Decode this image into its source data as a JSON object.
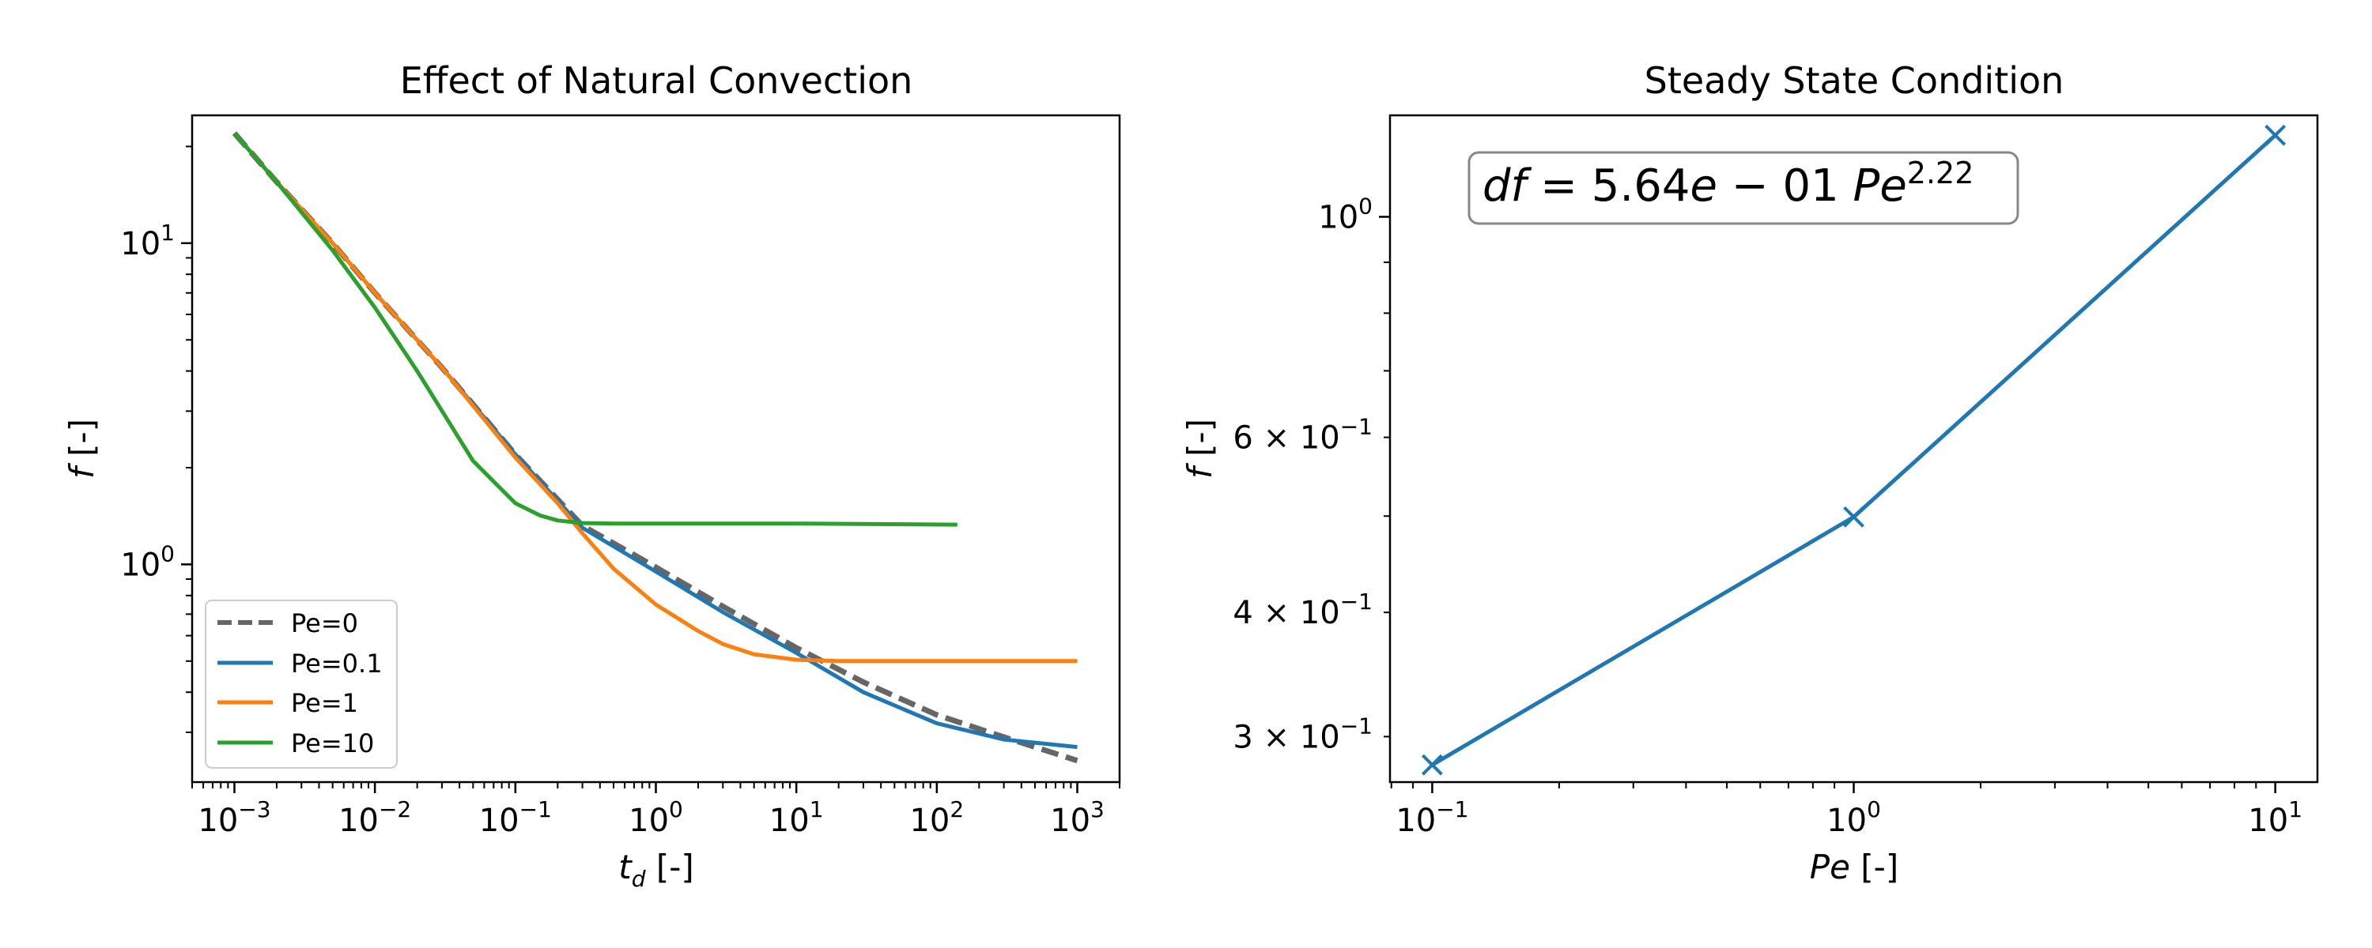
{
  "chart_data": [
    {
      "type": "line",
      "title": "Effect of Natural Convection",
      "xlabel": "t_d [-]",
      "xlabel_parts": {
        "sym": "t",
        "sub": "d",
        "unit": "[-]"
      },
      "ylabel": "f [-]",
      "ylabel_parts": {
        "sym": "f",
        "unit": "[-]"
      },
      "xscale": "log",
      "yscale": "log",
      "xlim": [
        0.0005,
        2000
      ],
      "ylim": [
        0.21,
        25
      ],
      "xticks": [
        {
          "base": "10",
          "exp": "−3",
          "value": 0.001
        },
        {
          "base": "10",
          "exp": "−2",
          "value": 0.01
        },
        {
          "base": "10",
          "exp": "−1",
          "value": 0.1
        },
        {
          "base": "10",
          "exp": "0",
          "value": 1
        },
        {
          "base": "10",
          "exp": "1",
          "value": 10
        },
        {
          "base": "10",
          "exp": "2",
          "value": 100
        },
        {
          "base": "10",
          "exp": "3",
          "value": 1000
        }
      ],
      "yticks": [
        {
          "base": "10",
          "exp": "0",
          "value": 1
        },
        {
          "base": "10",
          "exp": "1",
          "value": 10
        }
      ],
      "legend_position": "lower-left",
      "grid": false,
      "series": [
        {
          "name": "Pe=0",
          "color": "#666666",
          "dash": true,
          "x": [
            0.001,
            0.002,
            0.005,
            0.01,
            0.03,
            0.1,
            0.3,
            1,
            3,
            10,
            30,
            100,
            300,
            1000
          ],
          "y": [
            22,
            15.5,
            10,
            7,
            4.1,
            2.2,
            1.32,
            0.98,
            0.74,
            0.55,
            0.43,
            0.34,
            0.29,
            0.245
          ]
        },
        {
          "name": "Pe=0.1",
          "color": "#1f77b4",
          "dash": false,
          "x": [
            0.001,
            0.002,
            0.005,
            0.01,
            0.03,
            0.1,
            0.3,
            1,
            3,
            10,
            30,
            100,
            300,
            1000
          ],
          "y": [
            22,
            15.5,
            10,
            7,
            4.1,
            2.2,
            1.3,
            0.95,
            0.71,
            0.53,
            0.4,
            0.32,
            0.285,
            0.27
          ]
        },
        {
          "name": "Pe=1",
          "color": "#ff7f0e",
          "dash": false,
          "x": [
            0.001,
            0.002,
            0.005,
            0.01,
            0.03,
            0.1,
            0.2,
            0.3,
            0.5,
            1,
            2,
            3,
            5,
            10,
            20,
            100,
            1000
          ],
          "y": [
            22,
            15.5,
            10,
            7,
            4.1,
            2.15,
            1.55,
            1.25,
            0.97,
            0.75,
            0.62,
            0.565,
            0.525,
            0.505,
            0.5,
            0.5,
            0.5
          ]
        },
        {
          "name": "Pe=10",
          "color": "#2ca02c",
          "dash": false,
          "x": [
            0.001,
            0.002,
            0.005,
            0.01,
            0.02,
            0.05,
            0.1,
            0.15,
            0.2,
            0.3,
            0.5,
            1,
            10,
            140
          ],
          "y": [
            22,
            15.5,
            9.5,
            6.3,
            4.0,
            2.1,
            1.55,
            1.42,
            1.37,
            1.345,
            1.34,
            1.34,
            1.34,
            1.33
          ]
        }
      ]
    },
    {
      "type": "line",
      "title": "Steady State Condition",
      "xlabel": "Pe [-]",
      "xlabel_parts": {
        "sym": "Pe",
        "unit": "[-]"
      },
      "ylabel": "f [-]",
      "ylabel_parts": {
        "sym": "f",
        "unit": "[-]"
      },
      "xscale": "log",
      "yscale": "log",
      "xlim": [
        0.0794,
        12.59
      ],
      "ylim": [
        0.27,
        1.265
      ],
      "xticks": [
        {
          "base": "10",
          "exp": "−1",
          "value": 0.1
        },
        {
          "base": "10",
          "exp": "0",
          "value": 1
        },
        {
          "base": "10",
          "exp": "1",
          "value": 10
        }
      ],
      "yticks": [
        {
          "mant": "3 × ",
          "base": "10",
          "exp": "−1",
          "value": 0.3
        },
        {
          "mant": "4 × ",
          "base": "10",
          "exp": "−1",
          "value": 0.4
        },
        {
          "mant": "6 × ",
          "base": "10",
          "exp": "−1",
          "value": 0.6
        },
        {
          "mant": "",
          "base": "10",
          "exp": "0",
          "value": 1
        }
      ],
      "annotation": {
        "lhs": "df",
        "eq": " = ",
        "coef": "5.64",
        "e": "e",
        "minus": " − ",
        "e_exp": "01",
        "var": "Pe",
        "power": "2.22"
      },
      "grid": false,
      "series": [
        {
          "color": "#1f77b4",
          "marker": "x",
          "x": [
            0.1,
            1,
            10
          ],
          "y": [
            0.281,
            0.499,
            1.208
          ]
        }
      ]
    }
  ]
}
